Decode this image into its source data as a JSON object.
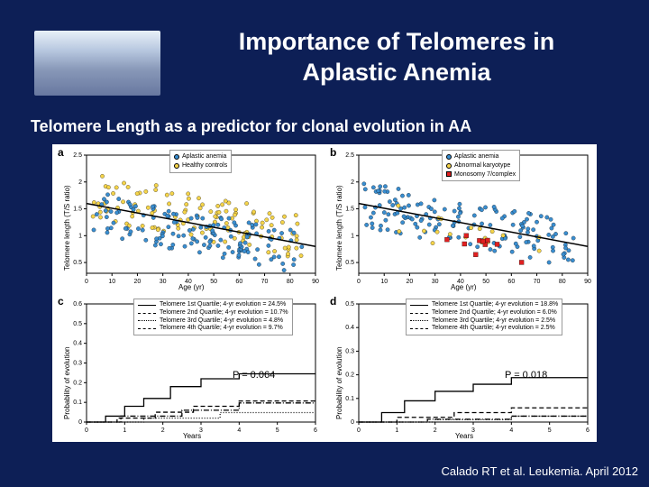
{
  "title_line1": "Importance of Telomeres in",
  "title_line2": "Aplastic Anemia",
  "subtitle": "Telomere Length as a predictor for clonal evolution in AA",
  "citation": "Calado RT et al. Leukemia. April 2012",
  "colors": {
    "background": "#0d1f56",
    "aplastic": "#3a8ed0",
    "healthy": "#f5d44a",
    "abnormal": "#f5d44a",
    "monosomy": "#e02020",
    "grid": "#cccccc",
    "line": "#000000"
  },
  "panels": {
    "a": {
      "label": "a",
      "type": "scatter",
      "xlabel": "Age (yr)",
      "ylabel": "Telomere length (T/S ratio)",
      "xlim": [
        0,
        90
      ],
      "ylim": [
        0.3,
        2.5
      ],
      "xticks": [
        0,
        10,
        20,
        30,
        40,
        50,
        60,
        70,
        80,
        90
      ],
      "yticks": [
        0.5,
        1.0,
        1.5,
        2.0,
        2.5
      ],
      "legend": [
        {
          "label": "Aplastic anemia",
          "color": "#3a8ed0",
          "shape": "circle"
        },
        {
          "label": "Healthy controls",
          "color": "#f5d44a",
          "shape": "circle"
        }
      ],
      "fit_line": {
        "x0": 0,
        "y0": 1.6,
        "x1": 90,
        "y1": 0.8
      }
    },
    "b": {
      "label": "b",
      "type": "scatter",
      "xlabel": "Age (yr)",
      "ylabel": "Telomere length (T/S ratio)",
      "xlim": [
        0,
        90
      ],
      "ylim": [
        0.3,
        2.5
      ],
      "xticks": [
        0,
        10,
        20,
        30,
        40,
        50,
        60,
        70,
        80,
        90
      ],
      "yticks": [
        0.5,
        1.0,
        1.5,
        2.0,
        2.5
      ],
      "legend": [
        {
          "label": "Aplastic anemia",
          "color": "#3a8ed0",
          "shape": "circle"
        },
        {
          "label": "Abnormal karyotype",
          "color": "#f5d44a",
          "shape": "circle"
        },
        {
          "label": "Monosomy 7/complex",
          "color": "#e02020",
          "shape": "square"
        }
      ],
      "fit_line": {
        "x0": 0,
        "y0": 1.6,
        "x1": 90,
        "y1": 0.8
      }
    },
    "c": {
      "label": "c",
      "type": "step",
      "xlabel": "Years",
      "ylabel": "Probability of evolution",
      "xlim": [
        0,
        6
      ],
      "ylim": [
        0,
        0.6
      ],
      "xticks": [
        0,
        1,
        2,
        3,
        4,
        5,
        6
      ],
      "yticks": [
        0,
        0.1,
        0.2,
        0.3,
        0.4,
        0.5,
        0.6
      ],
      "p_value": "P = 0.064",
      "legend": [
        {
          "label": "Telomere 1st Quartile; 4-yr evolution = 24.5%",
          "style": "solid"
        },
        {
          "label": "Telomere 2nd Quartile; 4-yr evolution = 10.7%",
          "style": "dashed"
        },
        {
          "label": "Telomere 3rd Quartile; 4-yr evolution = 4.8%",
          "style": "dotted"
        },
        {
          "label": "Telomere 4th Quartile; 4-yr evolution = 9.7%",
          "style": "dashdot"
        }
      ],
      "series": {
        "q1": [
          [
            0,
            0
          ],
          [
            0.5,
            0.03
          ],
          [
            1.0,
            0.08
          ],
          [
            1.5,
            0.12
          ],
          [
            2.2,
            0.18
          ],
          [
            3.0,
            0.22
          ],
          [
            4.0,
            0.245
          ],
          [
            6,
            0.245
          ]
        ],
        "q2": [
          [
            0,
            0
          ],
          [
            0.8,
            0.02
          ],
          [
            1.8,
            0.05
          ],
          [
            2.8,
            0.08
          ],
          [
            4.0,
            0.107
          ],
          [
            6,
            0.107
          ]
        ],
        "q3": [
          [
            0,
            0
          ],
          [
            1.5,
            0.02
          ],
          [
            3.5,
            0.048
          ],
          [
            6,
            0.048
          ]
        ],
        "q4": [
          [
            0,
            0
          ],
          [
            0.9,
            0.03
          ],
          [
            2.5,
            0.06
          ],
          [
            4.0,
            0.097
          ],
          [
            6,
            0.097
          ]
        ]
      }
    },
    "d": {
      "label": "d",
      "type": "step",
      "xlabel": "Years",
      "ylabel": "Probability of evolution",
      "xlim": [
        0,
        6
      ],
      "ylim": [
        0,
        0.5
      ],
      "xticks": [
        0,
        1,
        2,
        3,
        4,
        5,
        6
      ],
      "yticks": [
        0,
        0.1,
        0.2,
        0.3,
        0.4,
        0.5
      ],
      "p_value": "P = 0.018",
      "legend": [
        {
          "label": "Telomere 1st Quartile; 4-yr evolution = 18.8%",
          "style": "solid"
        },
        {
          "label": "Telomere 2nd Quartile; 4-yr evolution = 6.0%",
          "style": "dashed"
        },
        {
          "label": "Telomere 3rd Quartile; 4-yr evolution = 2.5%",
          "style": "dotted"
        },
        {
          "label": "Telomere 4th Quartile; 4-yr evolution = 2.5%",
          "style": "dashdot"
        }
      ],
      "series": {
        "q1": [
          [
            0,
            0
          ],
          [
            0.6,
            0.04
          ],
          [
            1.2,
            0.09
          ],
          [
            2.0,
            0.13
          ],
          [
            3.0,
            0.16
          ],
          [
            4.0,
            0.188
          ],
          [
            6,
            0.188
          ]
        ],
        "q2": [
          [
            0,
            0
          ],
          [
            1.0,
            0.02
          ],
          [
            2.5,
            0.04
          ],
          [
            4.0,
            0.06
          ],
          [
            6,
            0.06
          ]
        ],
        "q3": [
          [
            0,
            0
          ],
          [
            2.0,
            0.01
          ],
          [
            4.0,
            0.025
          ],
          [
            6,
            0.025
          ]
        ],
        "q4": [
          [
            0,
            0
          ],
          [
            1.8,
            0.012
          ],
          [
            4.0,
            0.025
          ],
          [
            6,
            0.025
          ]
        ]
      }
    }
  }
}
